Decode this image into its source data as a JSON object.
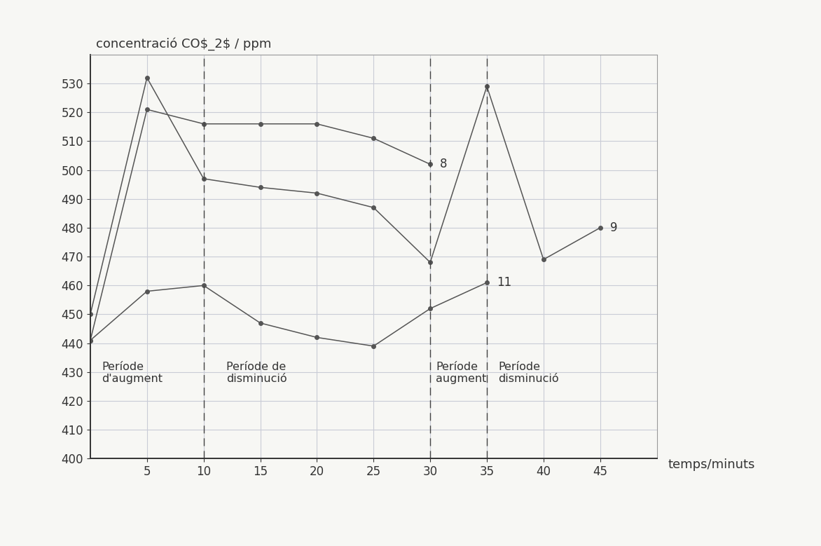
{
  "chart_data": {
    "type": "line",
    "x_label": "temps/minuts",
    "y_label": "concentració CO$_2$ / ppm",
    "xlim": [
      0,
      50
    ],
    "xticks": [
      5,
      10,
      15,
      20,
      25,
      30,
      35,
      40,
      45
    ],
    "ylim": [
      400,
      540
    ],
    "yticks": [
      400,
      410,
      420,
      430,
      440,
      450,
      460,
      470,
      480,
      490,
      500,
      510,
      520,
      530
    ],
    "grid": true,
    "marker": "o",
    "series": [
      {
        "name": "8",
        "color": "#555555",
        "x": [
          0,
          5,
          10,
          15,
          20,
          25,
          30
        ],
        "values": [
          441,
          521,
          516,
          516,
          516,
          511,
          502
        ]
      },
      {
        "name": "9",
        "color": "#555555",
        "x": [
          0,
          5,
          10,
          15,
          20,
          25,
          30,
          35,
          40,
          45
        ],
        "values": [
          450,
          532,
          497,
          494,
          492,
          487,
          468,
          529,
          469,
          480
        ]
      },
      {
        "name": "11",
        "color": "#555555",
        "x": [
          0,
          5,
          10,
          15,
          20,
          25,
          30,
          35
        ],
        "values": [
          441,
          458,
          460,
          447,
          442,
          439,
          452,
          461
        ]
      }
    ],
    "vlines": [
      10,
      30,
      35
    ],
    "periods": [
      "Període\nd'augment",
      "Període de\ndisminució",
      "Període\naugment",
      "Període\ndisminució"
    ]
  }
}
